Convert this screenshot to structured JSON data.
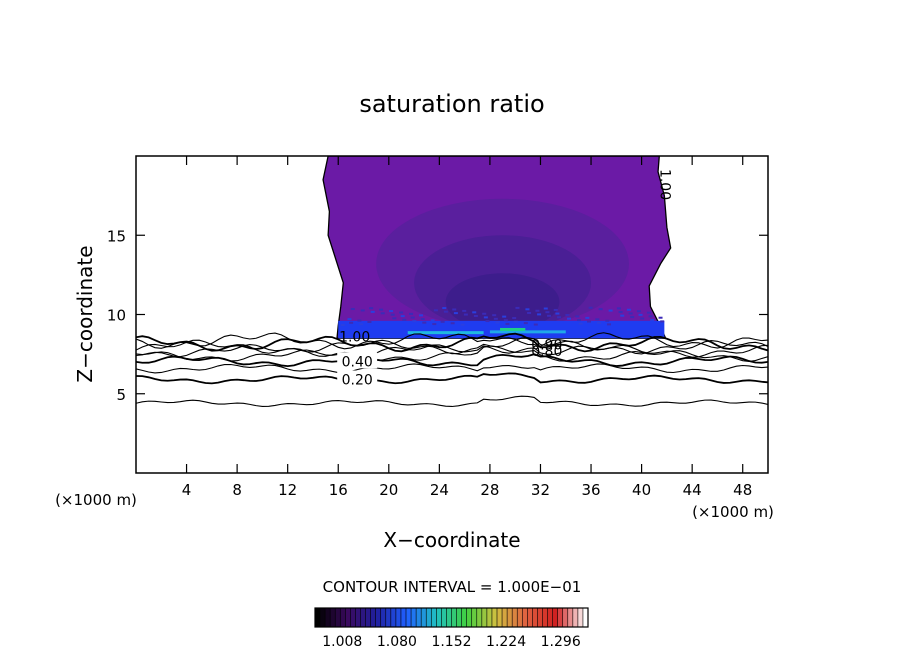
{
  "chart_data": {
    "type": "contour",
    "title": "saturation ratio",
    "xlabel": "X−coordinate",
    "ylabel": "Z−coordinate",
    "x_unit_left": "(×1000 m)",
    "x_unit_right": "(×1000 m)",
    "xlim": [
      0,
      50
    ],
    "ylim": [
      0,
      20
    ],
    "x_ticks": [
      4,
      8,
      12,
      16,
      20,
      24,
      28,
      32,
      36,
      40,
      44,
      48
    ],
    "y_ticks": [
      5,
      10,
      15
    ],
    "contour_interval_text": "CONTOUR INTERVAL = 1.000E−01",
    "contour_lines": [
      {
        "level": 0.1,
        "z": 4.4
      },
      {
        "level": 0.2,
        "z": 5.9
      },
      {
        "level": 0.3,
        "z": 6.6
      },
      {
        "level": 0.4,
        "z": 7.05
      },
      {
        "level": 0.5,
        "z": 7.4
      },
      {
        "level": 0.6,
        "z": 7.7
      },
      {
        "level": 0.7,
        "z": 7.95
      },
      {
        "level": 0.8,
        "z": 8.15
      },
      {
        "level": 0.9,
        "z": 8.35
      }
    ],
    "contour_labels": [
      {
        "text": "0.20",
        "x": 17.5,
        "z": 5.9
      },
      {
        "text": "0.40",
        "x": 17.5,
        "z": 7.05
      },
      {
        "text": "0.80",
        "x": 32.5,
        "z": 7.7
      },
      {
        "text": "0.90",
        "x": 32.5,
        "z": 8.1
      },
      {
        "text": "1.00",
        "x": 17.3,
        "z": 8.6
      },
      {
        "text": "1.00",
        "x": 41.5,
        "z": 18.2
      }
    ],
    "shaded_region": {
      "x_range": [
        15.8,
        41.5
      ],
      "z_range": [
        8.5,
        20
      ],
      "colors": {
        "outer": "#6b1aa6",
        "mid": "#5a1f9e",
        "inner": "#4a1f95",
        "core": "#3d1d8c",
        "base_band": "#1f3cf0",
        "max_core": "#1fcf8a"
      }
    },
    "colorbar": {
      "tick_labels": [
        "1.008",
        "1.080",
        "1.152",
        "1.224",
        "1.296"
      ],
      "range": [
        0.972,
        1.332
      ],
      "colors": [
        "#000000",
        "#3a0a5e",
        "#2020a0",
        "#2060ff",
        "#20c0c0",
        "#40d040",
        "#d0c040",
        "#e06040",
        "#d02020",
        "#ffffff"
      ]
    }
  }
}
